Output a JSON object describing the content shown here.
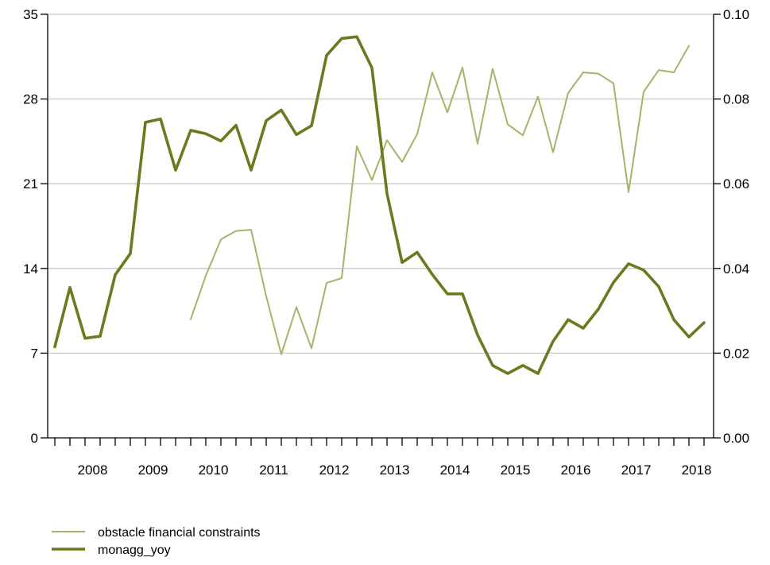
{
  "chart_data": {
    "type": "line",
    "x_unit": "quarter",
    "year_labels": [
      "2008",
      "2009",
      "2010",
      "2011",
      "2012",
      "2013",
      "2014",
      "2015",
      "2016",
      "2017",
      "2018"
    ],
    "left_axis": {
      "ylim": [
        0,
        35
      ],
      "ticks": [
        "0",
        "7",
        "14",
        "21",
        "28",
        "35"
      ]
    },
    "right_axis": {
      "ylim": [
        0,
        0.1
      ],
      "ticks": [
        "0.00",
        "0.02",
        "0.04",
        "0.06",
        "0.08",
        "0.10"
      ]
    },
    "grid": true,
    "legend_position": "bottom-left",
    "series": [
      {
        "name": "obstacle financial constraints",
        "axis": "left",
        "color": "#a3b56b",
        "start": "2010-Q1",
        "values": [
          9.8,
          13.4,
          16.4,
          17.1,
          17.2,
          11.7,
          6.9,
          10.8,
          7.4,
          12.8,
          13.2,
          24.1,
          21.3,
          24.6,
          22.8,
          25.1,
          30.2,
          26.9,
          30.6,
          24.3,
          30.5,
          25.9,
          25.0,
          28.2,
          23.6,
          28.5,
          30.2,
          30.1,
          29.3,
          20.3,
          28.6,
          30.4,
          30.2,
          32.4
        ]
      },
      {
        "name": "monagg_yoy",
        "axis": "right",
        "color": "#6b7a1f",
        "start": "2007-Q4",
        "values": [
          0.0215,
          0.0355,
          0.0235,
          0.024,
          0.0385,
          0.0435,
          0.0745,
          0.0753,
          0.0632,
          0.0726,
          0.0718,
          0.0701,
          0.0738,
          0.0632,
          0.0749,
          0.0774,
          0.0716,
          0.0737,
          0.0903,
          0.0943,
          0.0947,
          0.0874,
          0.0577,
          0.0414,
          0.0438,
          0.0386,
          0.034,
          0.034,
          0.0243,
          0.0171,
          0.0152,
          0.0171,
          0.0152,
          0.0228,
          0.0279,
          0.0259,
          0.0304,
          0.0367,
          0.0411,
          0.0396,
          0.0357,
          0.0279,
          0.0238,
          0.0272
        ]
      }
    ]
  }
}
